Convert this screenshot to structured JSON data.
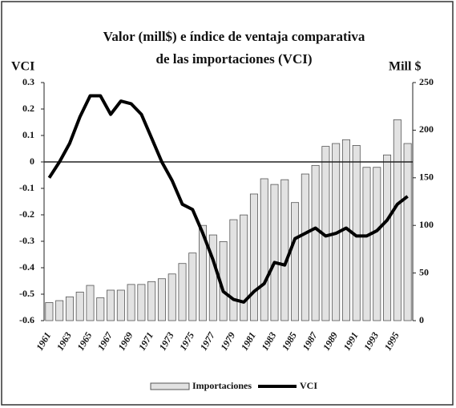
{
  "chart_data": {
    "type": "bar-line",
    "title": "Valor (mill$) e índice de ventaja comparativa",
    "subtitle": "de las importaciones (VCI)",
    "y_label": "VCI",
    "y2_label": "Mill $",
    "categories": [
      "1961",
      null,
      "1963",
      null,
      "1965",
      null,
      "1967",
      null,
      "1969",
      null,
      "1971",
      null,
      "1973",
      null,
      "1975",
      null,
      "1977",
      null,
      "1979",
      null,
      "1981",
      null,
      "1983",
      null,
      "1985",
      null,
      "1987",
      null,
      "1989",
      null,
      "1991",
      null,
      "1993",
      null,
      "1995",
      null
    ],
    "series": [
      {
        "name": "Importaciones",
        "type": "bar",
        "axis": "y2",
        "color": "#e2e2e2",
        "values": [
          19,
          21,
          25,
          30,
          37,
          24,
          32,
          32,
          38,
          38,
          41,
          44,
          49,
          60,
          71,
          100,
          90,
          83,
          106,
          111,
          133,
          149,
          143,
          148,
          124,
          154,
          163,
          183,
          186,
          190,
          184,
          161,
          161,
          174,
          211,
          186
        ]
      },
      {
        "name": "VCI",
        "type": "line",
        "color": "#000000",
        "values": [
          -0.06,
          0.0,
          0.07,
          0.17,
          0.25,
          0.25,
          0.18,
          0.23,
          0.22,
          0.18,
          0.09,
          0.0,
          -0.07,
          -0.16,
          -0.18,
          -0.27,
          -0.37,
          -0.49,
          -0.52,
          -0.53,
          -0.49,
          -0.46,
          -0.38,
          -0.39,
          -0.29,
          -0.27,
          -0.25,
          -0.28,
          -0.27,
          -0.25,
          -0.28,
          -0.28,
          -0.26,
          -0.22,
          -0.16,
          -0.13
        ]
      }
    ],
    "ylim": [
      -0.6,
      0.3
    ],
    "yticks": [
      0.3,
      0.2,
      0.1,
      0,
      -0.1,
      -0.2,
      -0.3,
      -0.4,
      -0.5,
      -0.6
    ],
    "y2lim": [
      0,
      250
    ],
    "y2ticks": [
      0,
      50,
      100,
      150,
      200,
      250
    ],
    "legend": "bottom"
  }
}
